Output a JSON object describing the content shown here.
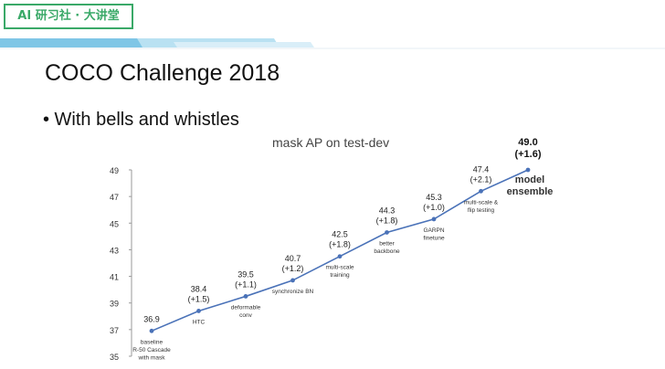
{
  "brand": {
    "label": "AI 研习社 · 大讲堂"
  },
  "slide": {
    "title": "COCO Challenge 2018",
    "bullet": "• With bells and whistles"
  },
  "colors": {
    "accent": "#3aa968",
    "line": "#4a72b8",
    "stripe": "#7fc6e6"
  },
  "chart_data": {
    "type": "line",
    "title": "mask AP on test-dev",
    "xlabel": "",
    "ylabel": "",
    "ylim": [
      35,
      49
    ],
    "yticks": [
      35,
      37,
      39,
      41,
      43,
      45,
      47,
      49
    ],
    "grid": false,
    "series": [
      {
        "values": [
          36.9,
          38.4,
          39.5,
          40.7,
          42.5,
          44.3,
          45.3,
          47.4,
          49.0
        ],
        "value_labels": [
          "36.9",
          "38.4\n(+1.5)",
          "39.5\n(+1.1)",
          "40.7\n(+1.2)",
          "42.5\n(+1.8)",
          "44.3\n(+1.8)",
          "45.3\n(+1.0)",
          "47.4\n(+2.1)",
          "49.0\n(+1.6)"
        ],
        "point_labels": [
          "baseline\nR-50 Cascade\nwith mask",
          "HTC",
          "deformable\nconv",
          "synchronize BN",
          "multi-scale\ntraining",
          "better\nbackbone",
          "GARPN\nfinetune",
          "multi-scale &\nflip testing",
          "model\nensemble"
        ]
      }
    ]
  }
}
